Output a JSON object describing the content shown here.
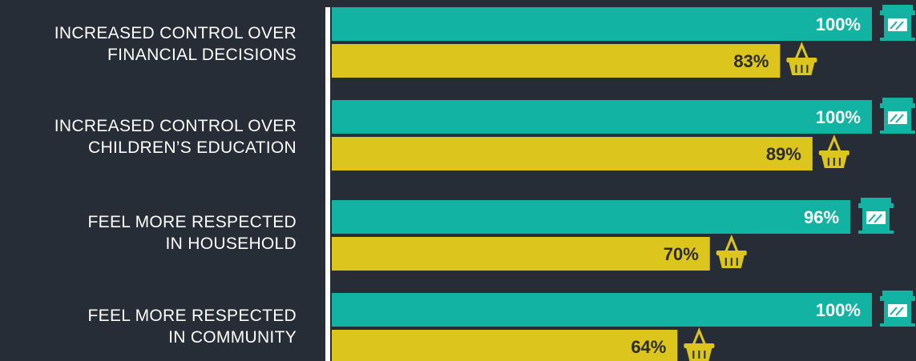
{
  "colors": {
    "background": "#262d36",
    "series_store": "#12b3a2",
    "series_basket": "#dcc61e",
    "axis": "#ffffff",
    "label_light": "#ffffff",
    "label_dark": "#2b2b2b"
  },
  "chart_data": {
    "type": "bar",
    "orientation": "horizontal",
    "categories": [
      [
        "INCREASED CONTROL OVER",
        "FINANCIAL DECISIONS"
      ],
      [
        "INCREASED CONTROL OVER",
        "CHILDREN’S EDUCATION"
      ],
      [
        "FEEL MORE RESPECTED",
        "IN HOUSEHOLD"
      ],
      [
        "FEEL MORE RESPECTED",
        "IN COMMUNITY"
      ]
    ],
    "series": [
      {
        "icon": "storefront-icon",
        "values": [
          100,
          100,
          96,
          100
        ],
        "labels": [
          "100%",
          "100%",
          "96%",
          "100%"
        ]
      },
      {
        "icon": "shopping-basket-icon",
        "values": [
          83,
          89,
          70,
          64
        ],
        "labels": [
          "83%",
          "89%",
          "70%",
          "64%"
        ]
      }
    ],
    "xlim": [
      0,
      100
    ],
    "grid": false
  }
}
